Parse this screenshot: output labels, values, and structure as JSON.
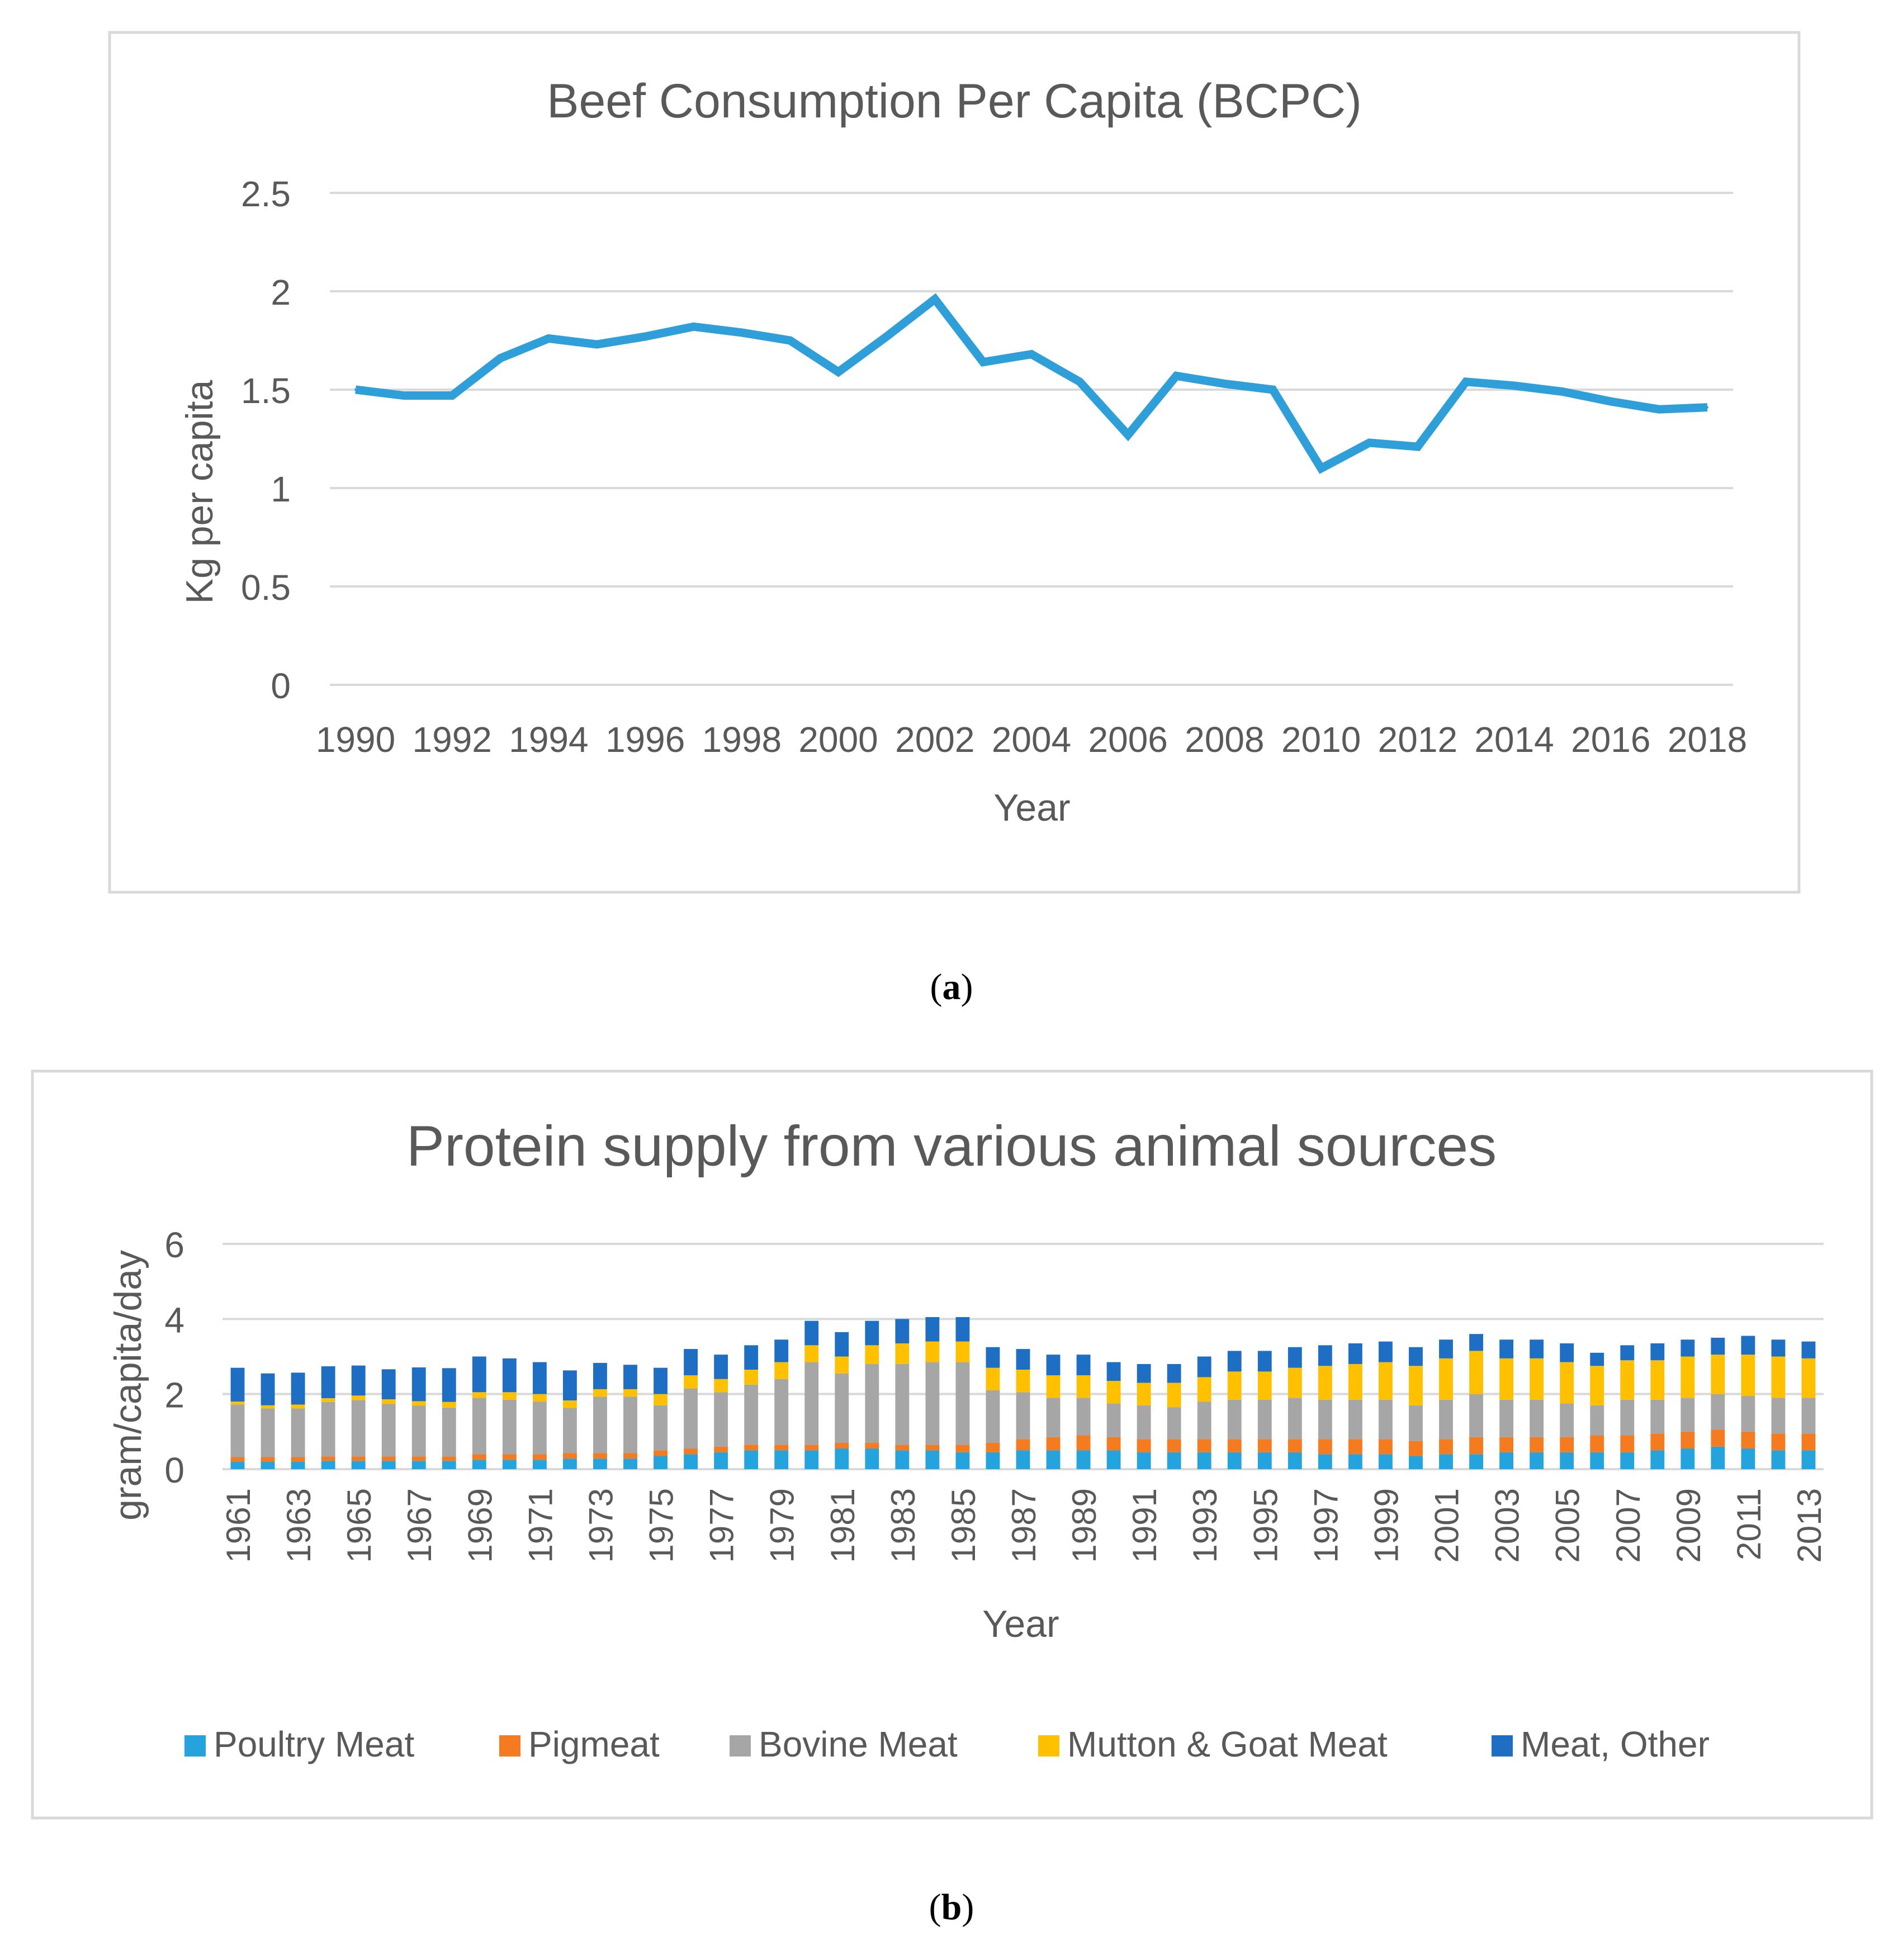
{
  "captions": {
    "a": "a",
    "b": "b"
  },
  "colors": {
    "line": "#2e9fd8",
    "grid": "#d9d9d9",
    "text": "#595959",
    "title": "#595959",
    "frame": "#d9d9d9",
    "poultry": "#25a3dc",
    "pig": "#f47b20",
    "bovine": "#a6a6a6",
    "mutton": "#ffc000",
    "other": "#1e6fc4"
  },
  "chart_data": [
    {
      "type": "line",
      "title": "Beef Consumption Per Capita (BCPC)",
      "xlabel": "Year",
      "ylabel": "Kg per capita",
      "ylim": [
        0,
        2.5
      ],
      "yticks": [
        "0",
        "0.5",
        "1",
        "1.5",
        "2",
        "2.5"
      ],
      "xtick_labels": [
        "1990",
        "1992",
        "1994",
        "1996",
        "1998",
        "2000",
        "2002",
        "2004",
        "2006",
        "2008",
        "2010",
        "2012",
        "2014",
        "2016",
        "2018"
      ],
      "x": [
        1990,
        1991,
        1992,
        1993,
        1994,
        1995,
        1996,
        1997,
        1998,
        1999,
        2000,
        2001,
        2002,
        2003,
        2004,
        2005,
        2006,
        2007,
        2008,
        2009,
        2010,
        2011,
        2012,
        2013,
        2014,
        2015,
        2016,
        2017,
        2018
      ],
      "series": [
        {
          "name": "BCPC",
          "values": [
            1.5,
            1.47,
            1.47,
            1.66,
            1.76,
            1.73,
            1.77,
            1.82,
            1.79,
            1.75,
            1.59,
            1.77,
            1.96,
            1.64,
            1.68,
            1.54,
            1.27,
            1.57,
            1.53,
            1.5,
            1.1,
            1.23,
            1.21,
            1.54,
            1.52,
            1.49,
            1.44,
            1.4,
            1.41
          ]
        }
      ],
      "grid": true,
      "legend": "none"
    },
    {
      "type": "bar",
      "stacked": true,
      "title": "Protein supply from various animal sources",
      "xlabel": "Year",
      "ylabel": "gram/capita/day",
      "ylim": [
        0,
        6
      ],
      "yticks": [
        "0",
        "2",
        "4",
        "6"
      ],
      "categories": [
        1961,
        1962,
        1963,
        1964,
        1965,
        1966,
        1967,
        1968,
        1969,
        1970,
        1971,
        1972,
        1973,
        1974,
        1975,
        1976,
        1977,
        1978,
        1979,
        1980,
        1981,
        1982,
        1983,
        1984,
        1985,
        1986,
        1987,
        1988,
        1989,
        1990,
        1991,
        1992,
        1993,
        1994,
        1995,
        1996,
        1997,
        1998,
        1999,
        2000,
        2001,
        2002,
        2003,
        2004,
        2005,
        2006,
        2007,
        2008,
        2009,
        2010,
        2011,
        2012,
        2013
      ],
      "xtick_labels": [
        "1961",
        "1963",
        "1965",
        "1967",
        "1969",
        "1971",
        "1973",
        "1975",
        "1977",
        "1979",
        "1981",
        "1983",
        "1985",
        "1987",
        "1989",
        "1991",
        "1993",
        "1995",
        "1997",
        "1999",
        "2001",
        "2003",
        "2005",
        "2007",
        "2009",
        "2011",
        "2013"
      ],
      "series": [
        {
          "name": "Poultry Meat",
          "colorKey": "poultry",
          "values": [
            0.2,
            0.2,
            0.2,
            0.22,
            0.22,
            0.22,
            0.22,
            0.22,
            0.25,
            0.25,
            0.25,
            0.28,
            0.28,
            0.28,
            0.35,
            0.4,
            0.45,
            0.5,
            0.5,
            0.5,
            0.55,
            0.55,
            0.5,
            0.5,
            0.45,
            0.45,
            0.5,
            0.5,
            0.5,
            0.5,
            0.45,
            0.45,
            0.45,
            0.45,
            0.45,
            0.45,
            0.4,
            0.4,
            0.4,
            0.35,
            0.4,
            0.4,
            0.45,
            0.45,
            0.45,
            0.45,
            0.45,
            0.5,
            0.55,
            0.6,
            0.55,
            0.5,
            0.5
          ]
        },
        {
          "name": "Pigmeat",
          "colorKey": "pig",
          "values": [
            0.12,
            0.12,
            0.12,
            0.12,
            0.12,
            0.12,
            0.12,
            0.12,
            0.15,
            0.15,
            0.15,
            0.15,
            0.15,
            0.15,
            0.15,
            0.15,
            0.15,
            0.15,
            0.15,
            0.15,
            0.15,
            0.15,
            0.15,
            0.15,
            0.2,
            0.25,
            0.3,
            0.35,
            0.4,
            0.35,
            0.35,
            0.35,
            0.35,
            0.35,
            0.35,
            0.35,
            0.4,
            0.4,
            0.4,
            0.4,
            0.4,
            0.45,
            0.4,
            0.4,
            0.4,
            0.45,
            0.45,
            0.45,
            0.45,
            0.45,
            0.45,
            0.45,
            0.45
          ]
        },
        {
          "name": "Bovine Meat",
          "colorKey": "bovine",
          "values": [
            1.4,
            1.3,
            1.3,
            1.45,
            1.5,
            1.4,
            1.35,
            1.3,
            1.5,
            1.45,
            1.4,
            1.2,
            1.5,
            1.5,
            1.2,
            1.6,
            1.45,
            1.6,
            1.75,
            2.2,
            1.85,
            2.1,
            2.15,
            2.2,
            2.2,
            1.4,
            1.25,
            1.05,
            1.0,
            0.9,
            0.9,
            0.85,
            1.0,
            1.05,
            1.05,
            1.1,
            1.05,
            1.05,
            1.05,
            0.95,
            1.05,
            1.15,
            1.0,
            1.0,
            0.9,
            0.8,
            0.95,
            0.9,
            0.9,
            0.95,
            0.95,
            0.95,
            0.95
          ]
        },
        {
          "name": "Mutton & Goat Meat",
          "colorKey": "mutton",
          "values": [
            0.08,
            0.08,
            0.1,
            0.1,
            0.12,
            0.12,
            0.12,
            0.15,
            0.15,
            0.2,
            0.2,
            0.2,
            0.2,
            0.2,
            0.3,
            0.35,
            0.35,
            0.4,
            0.45,
            0.45,
            0.45,
            0.5,
            0.55,
            0.55,
            0.55,
            0.6,
            0.6,
            0.6,
            0.6,
            0.6,
            0.6,
            0.65,
            0.65,
            0.75,
            0.75,
            0.8,
            0.9,
            0.95,
            1.0,
            1.05,
            1.1,
            1.15,
            1.1,
            1.1,
            1.1,
            1.05,
            1.05,
            1.05,
            1.1,
            1.05,
            1.1,
            1.1,
            1.05
          ]
        },
        {
          "name": "Meat, Other",
          "colorKey": "other",
          "values": [
            0.9,
            0.85,
            0.85,
            0.85,
            0.8,
            0.8,
            0.9,
            0.9,
            0.95,
            0.9,
            0.85,
            0.8,
            0.7,
            0.65,
            0.7,
            0.7,
            0.65,
            0.65,
            0.6,
            0.65,
            0.65,
            0.65,
            0.65,
            0.65,
            0.65,
            0.55,
            0.55,
            0.55,
            0.55,
            0.5,
            0.5,
            0.5,
            0.55,
            0.55,
            0.55,
            0.55,
            0.55,
            0.55,
            0.55,
            0.5,
            0.5,
            0.45,
            0.5,
            0.5,
            0.5,
            0.35,
            0.4,
            0.45,
            0.45,
            0.45,
            0.5,
            0.45,
            0.45
          ]
        }
      ],
      "grid": true,
      "legend": "bottom"
    }
  ]
}
